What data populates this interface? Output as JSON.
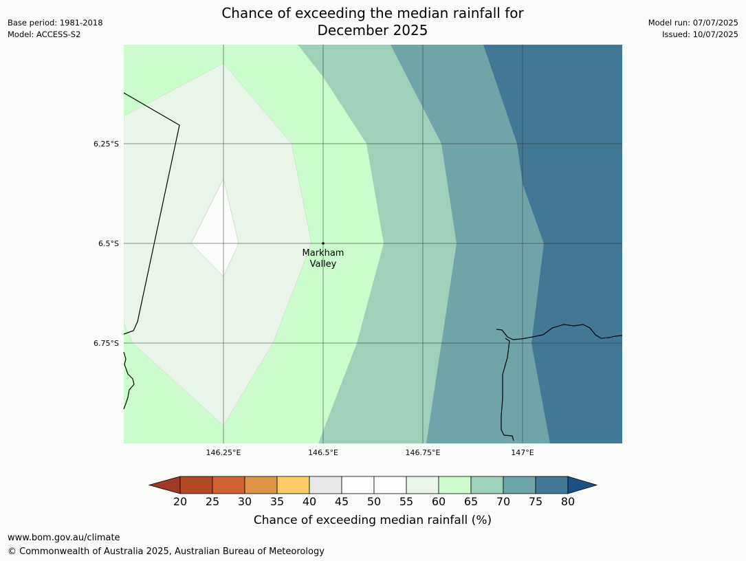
{
  "title_line1": "Chance of exceeding the median rainfall for",
  "title_line2": "December 2025",
  "meta": {
    "base_period": "Base period: 1981-2018",
    "model": "Model: ACCESS-S2",
    "model_run": "Model run: 07/07/2025",
    "issued": "Issued: 10/07/2025"
  },
  "map": {
    "lon_ticks": [
      {
        "value": 146.25,
        "label": "146.25°E"
      },
      {
        "value": 146.5,
        "label": "146.5°E"
      },
      {
        "value": 146.75,
        "label": "146.75°E"
      },
      {
        "value": 147.0,
        "label": "147°E"
      }
    ],
    "lat_ticks": [
      {
        "value": -6.25,
        "label": "6.25°S"
      },
      {
        "value": -6.5,
        "label": "6.5°S"
      },
      {
        "value": -6.75,
        "label": "6.75°S"
      }
    ],
    "place": {
      "name_line1": "Markham",
      "name_line2": "Valley",
      "lon": 146.5,
      "lat": -6.5
    }
  },
  "colorbar": {
    "label": "Chance of exceeding median rainfall (%)",
    "ticks": [
      "20",
      "25",
      "30",
      "35",
      "40",
      "45",
      "50",
      "55",
      "60",
      "65",
      "70",
      "75",
      "80"
    ],
    "colors": {
      "under": "#9e3a26",
      "b20_25": "#b44a24",
      "b25_30": "#cf6432",
      "b30_35": "#e29446",
      "b35_40": "#fecb66",
      "b40_45": "#eae8e6",
      "b45_50": "#fdfefc",
      "b50_55": "#fdfefc",
      "b55_60": "#eaf5ea",
      "b60_65": "#cbfccb",
      "b65_70": "#9fd1ba",
      "b70_75": "#6fa4a8",
      "b75_80": "#417896",
      "over": "#1b5089"
    }
  },
  "footer": {
    "url": "www.bom.gov.au/climate",
    "copyright": "© Commonwealth of Australia 2025, Australian Bureau of Meteorology"
  }
}
